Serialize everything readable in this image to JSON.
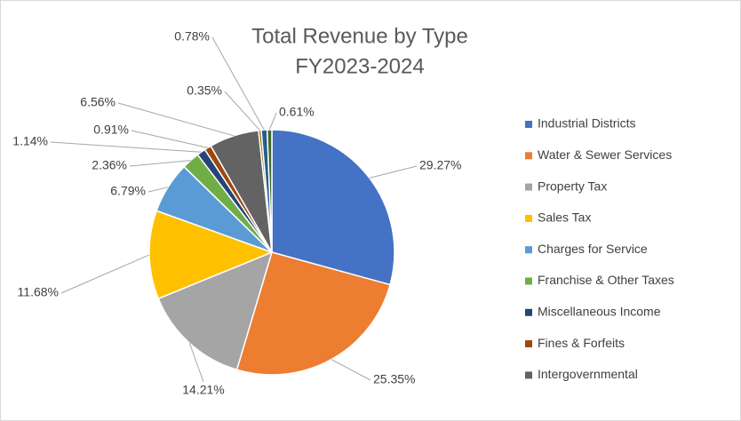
{
  "chart_data": {
    "type": "pie",
    "title": "Total Revenue by Type",
    "subtitle": "FY2023-2024",
    "categories": [
      "Industrial Districts",
      "Water & Sewer Services",
      "Property Tax",
      "Sales Tax",
      "Charges for Service",
      "Franchise & Other Taxes",
      "Miscellaneous Income",
      "Fines & Forfeits",
      "Intergovernmental",
      null,
      null,
      null
    ],
    "values": [
      29.27,
      25.35,
      14.21,
      11.68,
      6.79,
      2.36,
      1.14,
      0.91,
      6.56,
      0.35,
      0.78,
      0.61
    ],
    "value_labels": [
      "29.27%",
      "25.35%",
      "14.21%",
      "11.68%",
      "6.79%",
      "2.36%",
      "1.14%",
      "0.91%",
      "6.56%",
      "0.35%",
      "0.78%",
      "0.61%"
    ],
    "colors": [
      "#4472c4",
      "#ed7d31",
      "#a5a5a5",
      "#ffc000",
      "#5b9bd5",
      "#70ad47",
      "#264478",
      "#9e480e",
      "#636363",
      "#997300",
      "#255e91",
      "#43682b"
    ],
    "legend": "right"
  }
}
